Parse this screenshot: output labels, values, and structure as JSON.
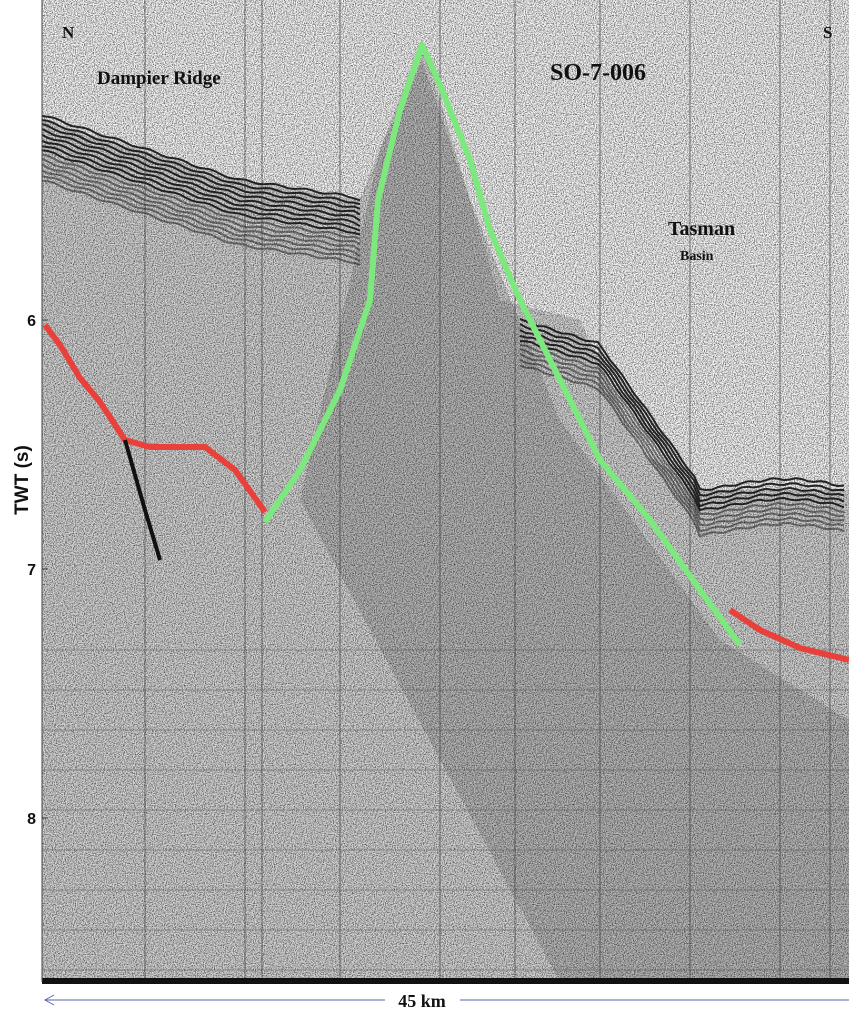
{
  "labels": {
    "north": "N",
    "south": "S",
    "ridge": "Dampier Ridge",
    "profile": "SO-7-006",
    "basin_1": "Tasman",
    "basin_2": "Basin",
    "scale": "45 km"
  },
  "axis": {
    "label": "TWT (s)",
    "ticks": [
      6,
      7,
      8
    ]
  }
}
